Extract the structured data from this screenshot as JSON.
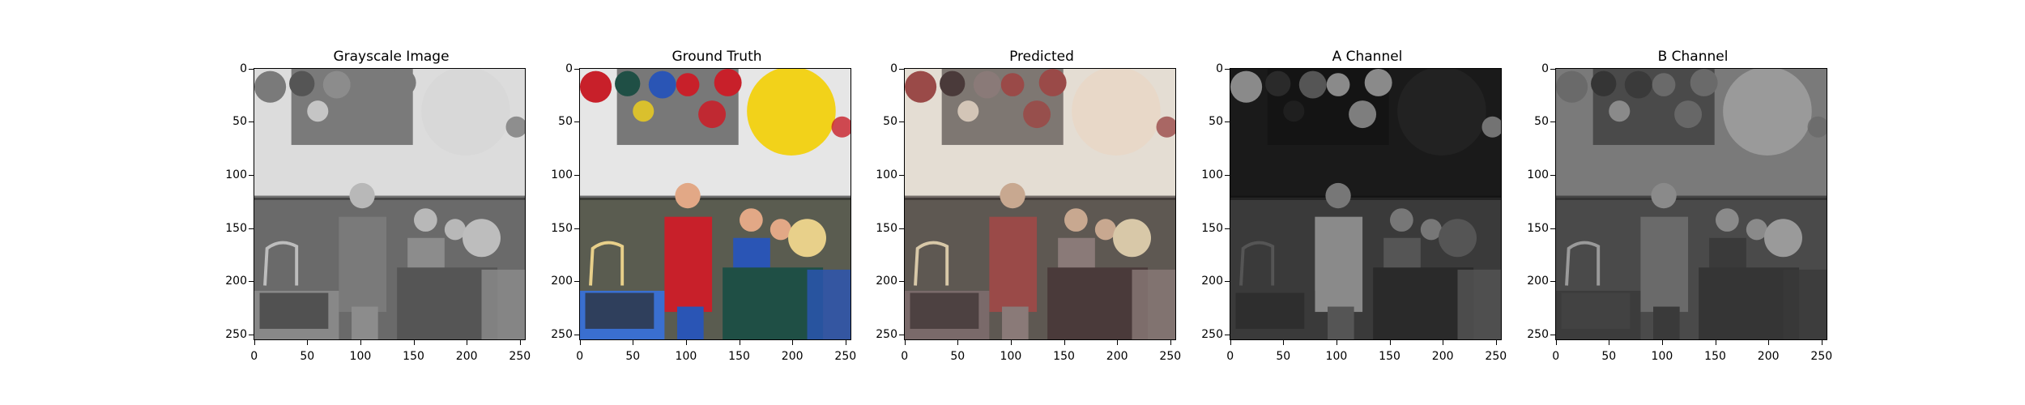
{
  "panels": [
    {
      "title": "Grayscale Image",
      "variant": "gray"
    },
    {
      "title": "Ground Truth",
      "variant": "color"
    },
    {
      "title": "Predicted",
      "variant": "sepia"
    },
    {
      "title": "A Channel",
      "variant": "achannel"
    },
    {
      "title": "B Channel",
      "variant": "bchannel"
    }
  ],
  "axis": {
    "x_ticks": [
      "0",
      "50",
      "100",
      "150",
      "200",
      "250"
    ],
    "y_ticks": [
      "0",
      "50",
      "100",
      "150",
      "200",
      "250"
    ],
    "range": [
      0,
      256
    ]
  }
}
